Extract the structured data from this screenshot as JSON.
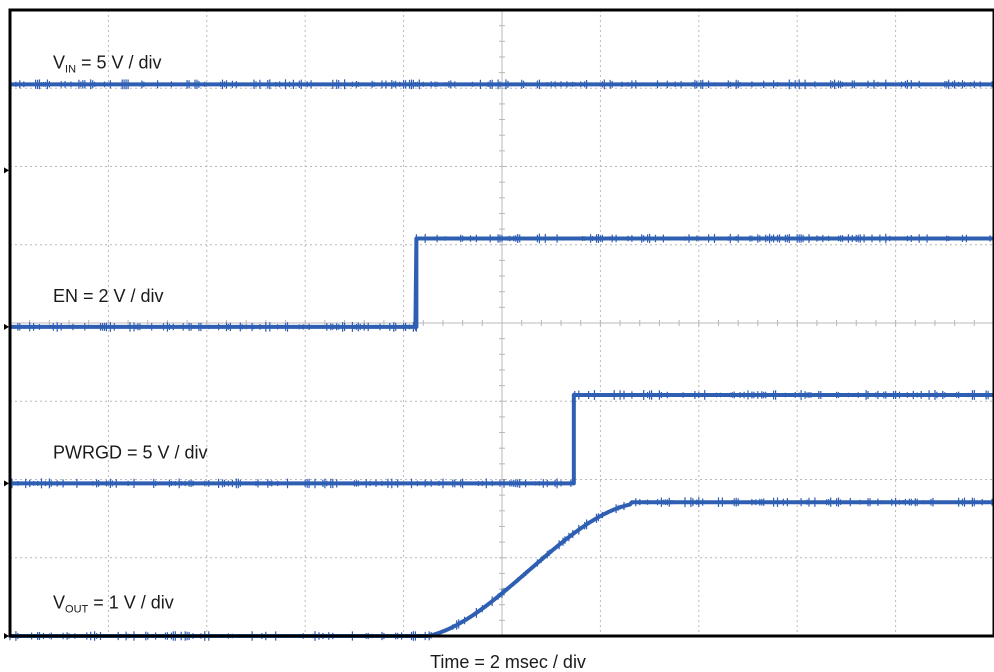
{
  "chart_data": {
    "type": "line",
    "title": "",
    "xlabel": "Time = 2 msec / div",
    "ylabel": "",
    "grid": true,
    "x_divisions": 10,
    "y_divisions": 8,
    "xlim": [
      0,
      10
    ],
    "ylim": [
      0,
      8
    ],
    "colors": {
      "trace": "#2f5fb3",
      "frame": "#000000",
      "grid": "#b8b8b8"
    },
    "series": [
      {
        "label_main": "V",
        "label_sub": "IN",
        "label_rest": "= 5 V / div",
        "low": 7.05,
        "high": 7.05,
        "rise_start": 0,
        "rise_end": 0,
        "shape": "flat"
      },
      {
        "label_main": "EN = 2 V / div",
        "label_sub": "",
        "label_rest": "",
        "low": 3.95,
        "high": 5.08,
        "rise_start": 4.13,
        "rise_end": 4.14,
        "shape": "step"
      },
      {
        "label_main": "PWRGD = 5 V / div",
        "label_sub": "",
        "label_rest": "",
        "low": 1.95,
        "high": 3.08,
        "rise_start": 5.73,
        "rise_end": 5.74,
        "shape": "step"
      },
      {
        "label_main": "V",
        "label_sub": "OUT",
        "label_rest": "= 1 V / div",
        "low": 0.0,
        "high": 1.71,
        "rise_start": 4.25,
        "rise_end": 6.3,
        "shape": "soft"
      }
    ],
    "channel_markers": [
      5.95,
      3.95,
      1.95,
      0.0
    ]
  }
}
